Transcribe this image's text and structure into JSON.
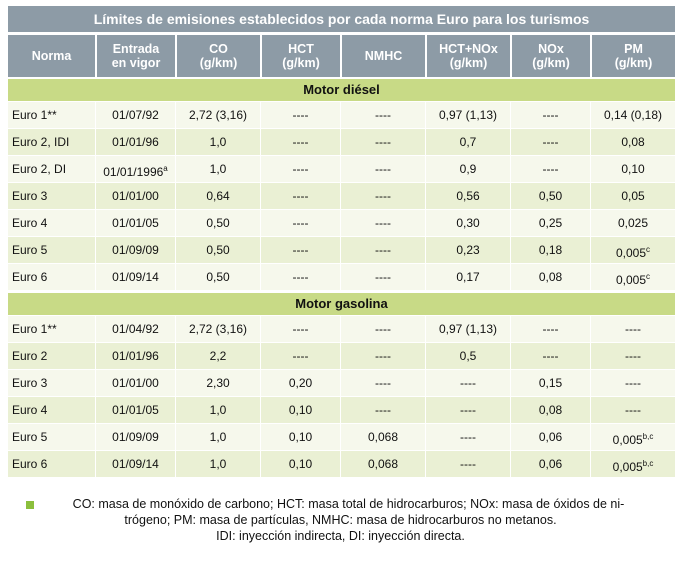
{
  "title": "Límites de emisiones establecidos por cada norma Euro para los turismos",
  "table": {
    "headers": [
      [
        "Norma"
      ],
      [
        "Entrada",
        "en vigor"
      ],
      [
        "CO",
        "(g/km)"
      ],
      [
        "HCT",
        "(g/km)"
      ],
      [
        "NMHC"
      ],
      [
        "HCT+NOx",
        "(g/km)"
      ],
      [
        "NOx",
        "(g/km)"
      ],
      [
        "PM",
        "(g/km)"
      ]
    ],
    "sections": [
      {
        "title": "Motor diésel",
        "rows": [
          [
            "Euro 1**",
            "01/07/92",
            "2,72 (3,16)",
            "----",
            "----",
            "0,97 (1,13)",
            "----",
            "0,14 (0,18)"
          ],
          [
            "Euro 2, IDI",
            "01/01/96",
            "1,0",
            "----",
            "----",
            "0,7",
            "----",
            "0,08"
          ],
          [
            "Euro 2, DI",
            {
              "text": "01/01/1996",
              "sup": "a"
            },
            "1,0",
            "----",
            "----",
            "0,9",
            "----",
            "0,10"
          ],
          [
            "Euro 3",
            "01/01/00",
            "0,64",
            "----",
            "----",
            "0,56",
            "0,50",
            "0,05"
          ],
          [
            "Euro 4",
            "01/01/05",
            "0,50",
            "----",
            "----",
            "0,30",
            "0,25",
            "0,025"
          ],
          [
            "Euro 5",
            "01/09/09",
            "0,50",
            "----",
            "----",
            "0,23",
            "0,18",
            {
              "text": "0,005",
              "sup": "c"
            }
          ],
          [
            "Euro 6",
            "01/09/14",
            "0,50",
            "----",
            "----",
            "0,17",
            "0,08",
            {
              "text": "0,005",
              "sup": "c"
            }
          ]
        ]
      },
      {
        "title": "Motor gasolina",
        "rows": [
          [
            "Euro 1**",
            "01/04/92",
            "2,72 (3,16)",
            "----",
            "----",
            "0,97 (1,13)",
            "----",
            "----"
          ],
          [
            "Euro 2",
            "01/01/96",
            "2,2",
            "----",
            "----",
            "0,5",
            "----",
            "----"
          ],
          [
            "Euro 3",
            "01/01/00",
            "2,30",
            "0,20",
            "----",
            "----",
            "0,15",
            "----"
          ],
          [
            "Euro 4",
            "01/01/05",
            "1,0",
            "0,10",
            "----",
            "----",
            "0,08",
            "----"
          ],
          [
            "Euro 5",
            "01/09/09",
            "1,0",
            "0,10",
            "0,068",
            "----",
            "0,06",
            {
              "text": "0,005",
              "sup": "b,c"
            }
          ],
          [
            "Euro 6",
            "01/09/14",
            "1,0",
            "0,10",
            "0,068",
            "----",
            "0,06",
            {
              "text": "0,005",
              "sup": "b,c"
            }
          ]
        ]
      }
    ]
  },
  "footnote": [
    "CO: masa de monóxido de carbono; HCT: masa total de hidrocarburos; NOx: masa de óxidos de ni-",
    "trógeno; PM: masa de partículas, NMHC: masa de hidrocarburos no metanos.",
    "IDI: inyección indirecta, DI: inyección directa."
  ]
}
